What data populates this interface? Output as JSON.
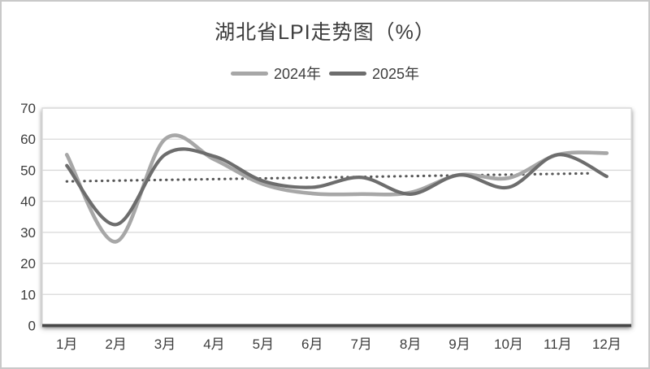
{
  "chart_data": {
    "type": "line",
    "title": "湖北省LPI走势图（%）",
    "categories": [
      "1月",
      "2月",
      "3月",
      "4月",
      "5月",
      "6月",
      "7月",
      "8月",
      "9月",
      "10月",
      "11月",
      "12月"
    ],
    "series": [
      {
        "name": "2024年",
        "color": "#a7a7a7",
        "line_width": 4.6,
        "smooth": true,
        "values": [
          55,
          27,
          60,
          53.5,
          45.5,
          42.5,
          42.3,
          42.8,
          48.5,
          47.5,
          55,
          55.5
        ]
      },
      {
        "name": "2025年",
        "color": "#6d6d6d",
        "line_width": 4.2,
        "smooth": true,
        "values": [
          51.5,
          32.5,
          55,
          54.5,
          46.5,
          44.5,
          47.7,
          42.3,
          48.5,
          44.5,
          55,
          48
        ]
      }
    ],
    "trendline": {
      "style": "dotted",
      "color": "#565656",
      "start_month": 1,
      "start_value": 46.4,
      "end_month": 11.7,
      "end_value": 49.0
    },
    "y_axis": {
      "min": 0,
      "max": 70,
      "step": 10,
      "tick_labels": [
        "0",
        "10",
        "20",
        "30",
        "40",
        "50",
        "60",
        "70"
      ]
    },
    "grid": true,
    "legend_position": "top"
  },
  "style": {
    "text_color": "#3d3d3d",
    "gridline_color": "#d9d9d9",
    "axis_line_color": "#474747",
    "background": "#ffffff",
    "border_color": "#c9c9c9"
  }
}
